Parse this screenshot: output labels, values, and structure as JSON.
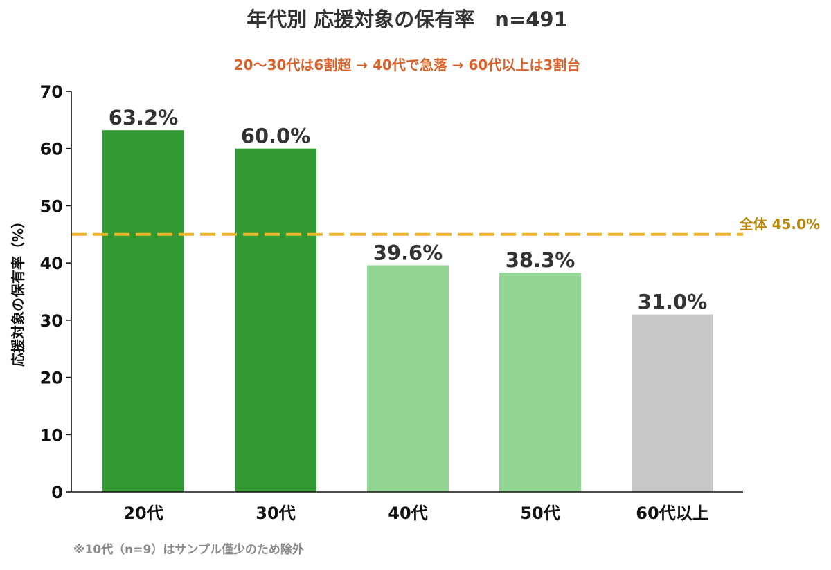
{
  "chart_data": {
    "type": "bar",
    "title": "年代別 応援対象の保有率　n=491",
    "subtitle": "20〜30代は6割超 → 40代で急落 → 60代以上は3割台",
    "categories": [
      "20代",
      "30代",
      "40代",
      "50代",
      "60代以上"
    ],
    "values": [
      63.2,
      60.0,
      39.6,
      38.3,
      31.0
    ],
    "value_labels": [
      "63.2%",
      "60.0%",
      "39.6%",
      "38.3%",
      "31.0%"
    ],
    "bar_colors": [
      "#339933",
      "#339933",
      "#93d693",
      "#93d693",
      "#c8c8c8"
    ],
    "ylabel": "応援対象の保有率（%）",
    "xlabel": "",
    "ylim": [
      0,
      70
    ],
    "yticks": [
      0,
      10,
      20,
      30,
      40,
      50,
      60,
      70
    ],
    "reference_line": {
      "value": 45.0,
      "label": "全体 45.0%",
      "color": "#f0b429",
      "label_color": "#b8860b",
      "style": "dashed"
    },
    "footnote": "※10代（n=9）はサンプル僅少のため除外",
    "grid": false,
    "legend": "none"
  },
  "colors": {
    "title": "#333333",
    "subtitle": "#d9622b",
    "axis": "#111111",
    "footnote": "#8a8a8a"
  }
}
